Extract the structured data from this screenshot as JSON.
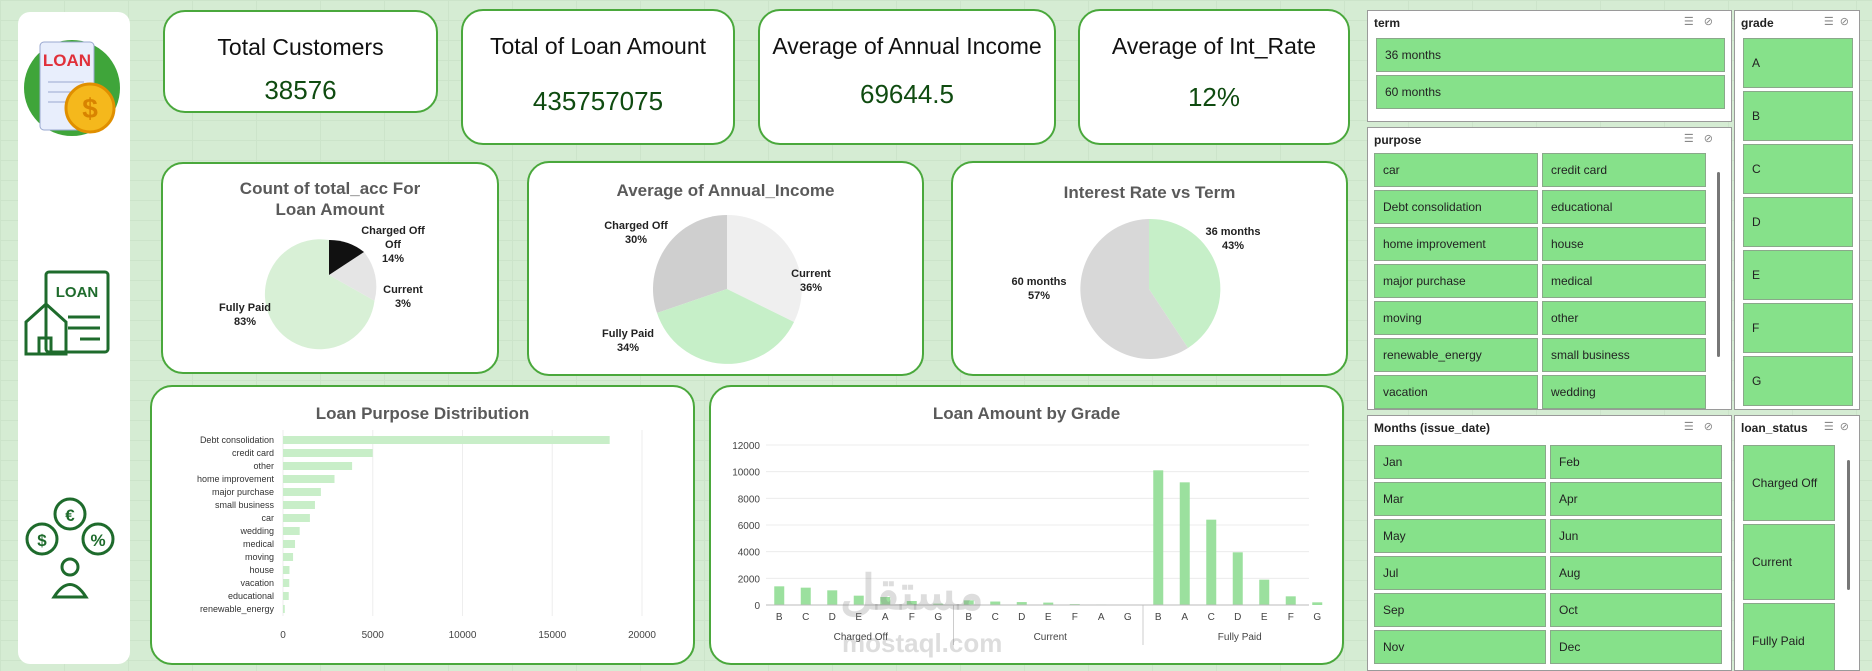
{
  "kpis": [
    {
      "title": "Total Customers",
      "value": "38576"
    },
    {
      "title": "Total of Loan Amount",
      "value": "435757075"
    },
    {
      "title": "Average of Annual Income",
      "value": "69644.5"
    },
    {
      "title": "Average of Int_Rate",
      "value": "12%"
    }
  ],
  "sidebar": {
    "loan_logo_text": "LOAN",
    "house_sign_text": "LOAN"
  },
  "pie1": {
    "title": "Count of total_acc For Loan Amount",
    "labels": [
      {
        "name": "Charged Off",
        "pct": "14%"
      },
      {
        "name": "Current",
        "pct": "3%"
      },
      {
        "name": "Fully Paid",
        "pct": "83%"
      }
    ]
  },
  "pie2": {
    "title": "Average of Annual_Income",
    "labels": [
      {
        "name": "Charged Off",
        "pct": "30%"
      },
      {
        "name": "Current",
        "pct": "36%"
      },
      {
        "name": "Fully Paid",
        "pct": "34%"
      }
    ]
  },
  "pie3": {
    "title": "Interest Rate vs Term",
    "labels": [
      {
        "name": "36 months",
        "pct": "43%"
      },
      {
        "name": "60 months",
        "pct": "57%"
      }
    ]
  },
  "chart_data": [
    {
      "type": "pie",
      "title": "Count of total_acc For Loan Amount",
      "categories": [
        "Charged Off",
        "Current",
        "Fully Paid"
      ],
      "values": [
        14,
        3,
        83
      ]
    },
    {
      "type": "pie",
      "title": "Average of Annual_Income",
      "categories": [
        "Charged Off",
        "Current",
        "Fully Paid"
      ],
      "values": [
        30,
        36,
        34
      ]
    },
    {
      "type": "pie",
      "title": "Interest Rate vs Term",
      "categories": [
        "36 months",
        "60 months"
      ],
      "values": [
        43,
        57
      ]
    },
    {
      "type": "bar",
      "title": "Loan Purpose Distribution",
      "orientation": "horizontal",
      "categories": [
        "Debt consolidation",
        "credit card",
        "other",
        "home improvement",
        "major purchase",
        "small business",
        "car",
        "wedding",
        "medical",
        "moving",
        "house",
        "vacation",
        "educational",
        "renewable_energy"
      ],
      "values": [
        18200,
        5000,
        3850,
        2870,
        2110,
        1780,
        1500,
        930,
        670,
        560,
        360,
        350,
        320,
        100
      ],
      "xlim": [
        0,
        20000
      ],
      "xticks": [
        "0",
        "5000",
        "10000",
        "15000",
        "20000"
      ]
    },
    {
      "type": "bar",
      "title": "Loan Amount by Grade",
      "groups": [
        {
          "name": "Charged Off",
          "categories": [
            "B",
            "C",
            "D",
            "E",
            "A",
            "F",
            "G"
          ],
          "values": [
            1400,
            1300,
            1100,
            700,
            600,
            300,
            100
          ]
        },
        {
          "name": "Current",
          "categories": [
            "B",
            "C",
            "D",
            "E",
            "F",
            "A",
            "G"
          ],
          "values": [
            350,
            260,
            220,
            180,
            70,
            40,
            20
          ]
        },
        {
          "name": "Fully Paid",
          "categories": [
            "B",
            "A",
            "C",
            "D",
            "E",
            "F",
            "G"
          ],
          "values": [
            10100,
            9200,
            6400,
            3950,
            1900,
            650,
            200
          ]
        }
      ],
      "ylim": [
        0,
        12000
      ],
      "yticks": [
        "0",
        "2000",
        "4000",
        "6000",
        "8000",
        "10000",
        "12000"
      ]
    }
  ],
  "slicers": {
    "term": {
      "title": "term",
      "items": [
        "36 months",
        "60 months"
      ]
    },
    "grade": {
      "title": "grade",
      "items": [
        "A",
        "B",
        "C",
        "D",
        "E",
        "F",
        "G"
      ]
    },
    "purpose": {
      "title": "purpose",
      "items": [
        "car",
        "credit card",
        "Debt consolidation",
        "educational",
        "home improvement",
        "house",
        "major purchase",
        "medical",
        "moving",
        "other",
        "renewable_energy",
        "small business",
        "vacation",
        "wedding"
      ]
    },
    "months": {
      "title": "Months (issue_date)",
      "items": [
        "Jan",
        "Feb",
        "Mar",
        "Apr",
        "May",
        "Jun",
        "Jul",
        "Aug",
        "Sep",
        "Oct",
        "Nov",
        "Dec"
      ]
    },
    "loan_status": {
      "title": "loan_status",
      "items": [
        "Charged Off",
        "Current",
        "Fully Paid"
      ]
    }
  },
  "watermark": {
    "arabic": "مستقل",
    "latin": "mostaql.com"
  },
  "colors": {
    "accent": "#4aa83c",
    "slicer_button": "#86e18a",
    "kpi_value": "#0f4b10",
    "bar": "#c8eec8"
  }
}
